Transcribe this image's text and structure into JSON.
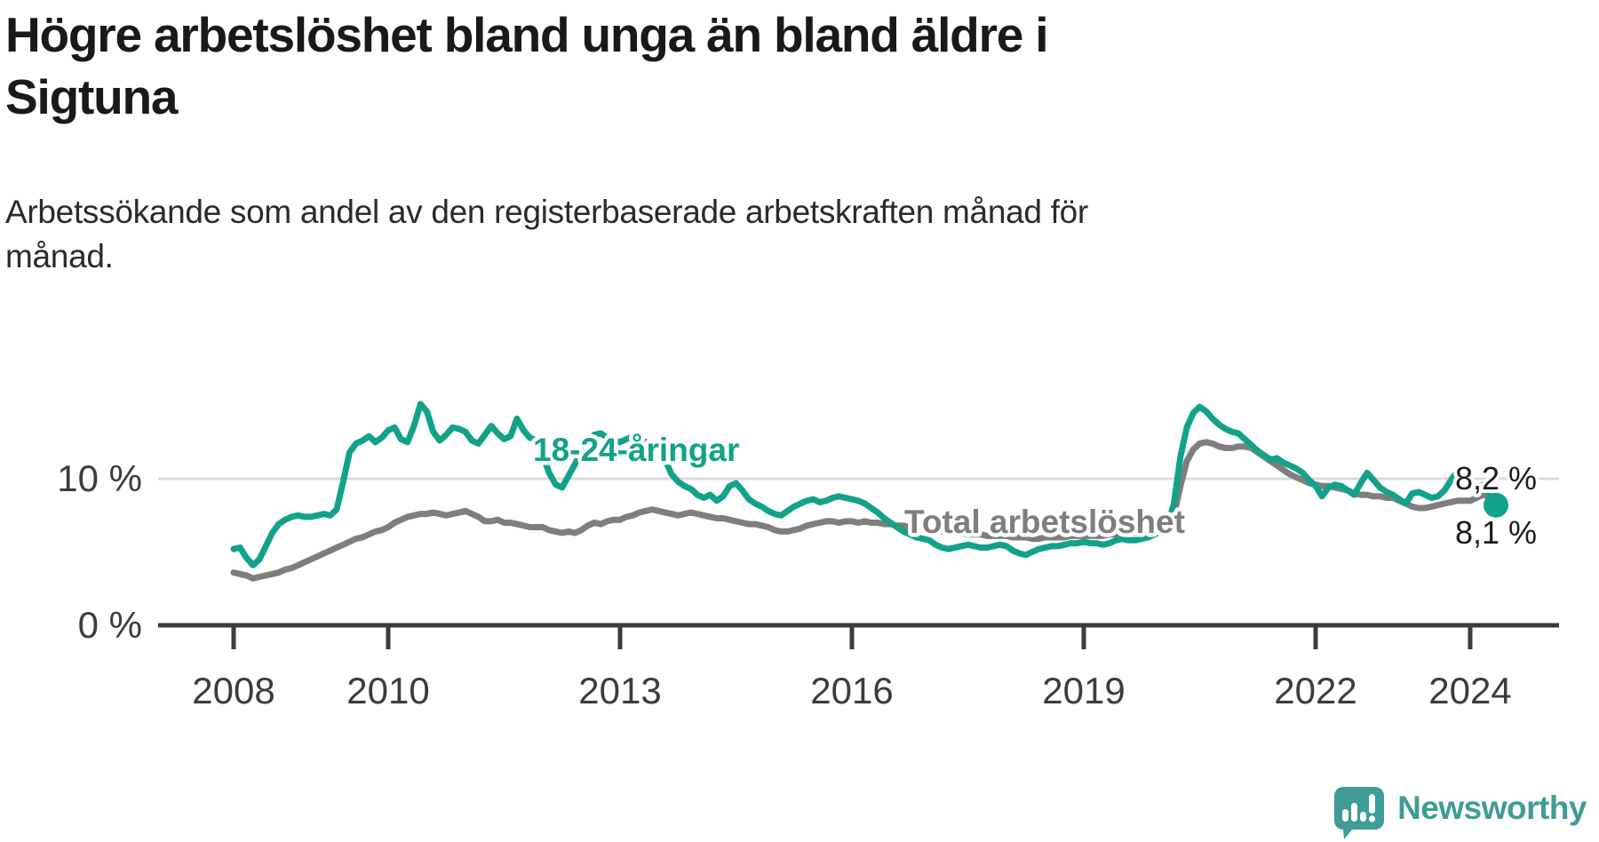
{
  "title": {
    "line1": "Högre arbetslöshet bland unga än bland äldre i",
    "line2": "Sigtuna"
  },
  "subtitle": {
    "line1": "Arbetssökande som andel av den registerbaserade arbetskraften månad för",
    "line2": "månad."
  },
  "branding": {
    "name": "Newsworthy",
    "color": "#3F9C96",
    "icon": "speech-bubble-bar-chart"
  },
  "chart_data": {
    "type": "line",
    "title": "Högre arbetslöshet bland unga än bland äldre i Sigtuna",
    "subtitle": "Arbetssökande som andel av den registerbaserade arbetskraften månad för månad.",
    "x_unit": "month",
    "x_start_year": 2008,
    "x_ticks": [
      2008,
      2010,
      2013,
      2016,
      2019,
      2022,
      2024
    ],
    "ylim": [
      0,
      15.5
    ],
    "grid": "single-line-at-10",
    "legend_position": "inline-labels",
    "y_ticks": [
      {
        "v": 10,
        "label": "10 %"
      },
      {
        "v": 0,
        "label": "0 %"
      }
    ],
    "series": [
      {
        "name": "18-24-åringar",
        "color": "#12A28A",
        "end_label": "8,2 %",
        "end_value": 8.2,
        "end_dot": true,
        "values": [
          5.2,
          5.3,
          4.6,
          4.1,
          4.5,
          5.4,
          6.3,
          6.9,
          7.2,
          7.4,
          7.5,
          7.4,
          7.4,
          7.5,
          7.6,
          7.5,
          7.9,
          9.8,
          11.8,
          12.4,
          12.6,
          12.9,
          12.5,
          12.8,
          13.3,
          13.5,
          12.7,
          12.5,
          13.6,
          15.1,
          14.6,
          13.2,
          12.6,
          13.0,
          13.5,
          13.4,
          13.2,
          12.6,
          12.4,
          13.0,
          13.6,
          13.1,
          12.7,
          12.9,
          14.1,
          13.3,
          12.8,
          12.6,
          11.6,
          10.4,
          9.6,
          9.4,
          10.2,
          11.0,
          11.9,
          12.6,
          13.0,
          13.1,
          12.8,
          12.6,
          12.5,
          12.7,
          12.9,
          12.7,
          12.5,
          12.4,
          12.3,
          11.3,
          10.3,
          9.8,
          9.5,
          9.3,
          8.9,
          8.7,
          8.9,
          8.5,
          8.8,
          9.5,
          9.7,
          9.2,
          8.6,
          8.3,
          8.1,
          7.8,
          7.6,
          7.5,
          7.8,
          8.1,
          8.3,
          8.5,
          8.6,
          8.4,
          8.5,
          8.7,
          8.8,
          8.7,
          8.6,
          8.5,
          8.3,
          8.0,
          7.7,
          7.3,
          7.0,
          6.7,
          6.4,
          6.2,
          6.0,
          5.9,
          5.8,
          5.5,
          5.3,
          5.2,
          5.3,
          5.4,
          5.5,
          5.4,
          5.3,
          5.3,
          5.4,
          5.5,
          5.4,
          5.1,
          4.9,
          4.8,
          5.0,
          5.2,
          5.3,
          5.4,
          5.4,
          5.5,
          5.6,
          5.6,
          5.7,
          5.6,
          5.6,
          5.5,
          5.6,
          5.8,
          5.9,
          5.8,
          5.8,
          5.9,
          6.0,
          6.2,
          6.5,
          6.8,
          8.3,
          11.5,
          13.5,
          14.5,
          14.9,
          14.6,
          14.1,
          13.7,
          13.4,
          13.2,
          13.1,
          12.7,
          12.3,
          11.9,
          11.6,
          11.3,
          11.4,
          11.1,
          10.9,
          10.7,
          10.4,
          9.9,
          9.5,
          8.8,
          9.4,
          9.6,
          9.5,
          9.2,
          8.9,
          9.7,
          10.4,
          9.9,
          9.4,
          9.1,
          8.9,
          8.6,
          8.3,
          9.0,
          9.1,
          8.9,
          8.7,
          8.8,
          9.2,
          9.9,
          10.5,
          10.1,
          9.8,
          9.3,
          9.6,
          8.8,
          8.2
        ]
      },
      {
        "name": "Total arbetslöshet",
        "color": "#7E7E7E",
        "end_label": "8,1 %",
        "end_value": 8.1,
        "end_dot": false,
        "values": [
          3.6,
          3.5,
          3.4,
          3.2,
          3.3,
          3.4,
          3.5,
          3.6,
          3.8,
          3.9,
          4.1,
          4.3,
          4.5,
          4.7,
          4.9,
          5.1,
          5.3,
          5.5,
          5.7,
          5.9,
          6.0,
          6.2,
          6.4,
          6.5,
          6.7,
          7.0,
          7.2,
          7.4,
          7.5,
          7.6,
          7.6,
          7.7,
          7.6,
          7.5,
          7.6,
          7.7,
          7.8,
          7.6,
          7.4,
          7.1,
          7.1,
          7.2,
          7.0,
          7.0,
          6.9,
          6.8,
          6.7,
          6.7,
          6.7,
          6.5,
          6.4,
          6.3,
          6.4,
          6.3,
          6.5,
          6.8,
          7.0,
          6.9,
          7.1,
          7.2,
          7.2,
          7.4,
          7.5,
          7.7,
          7.8,
          7.9,
          7.8,
          7.7,
          7.6,
          7.5,
          7.6,
          7.7,
          7.6,
          7.5,
          7.4,
          7.3,
          7.3,
          7.2,
          7.1,
          7.0,
          6.9,
          6.9,
          6.8,
          6.7,
          6.5,
          6.4,
          6.4,
          6.5,
          6.6,
          6.8,
          6.9,
          7.0,
          7.1,
          7.1,
          7.0,
          7.1,
          7.1,
          7.0,
          7.1,
          7.0,
          7.0,
          6.9,
          6.9,
          6.8,
          6.8,
          6.7,
          6.7,
          6.6,
          6.5,
          6.5,
          6.4,
          6.4,
          6.3,
          6.3,
          6.2,
          6.2,
          6.2,
          6.1,
          6.1,
          6.1,
          6.1,
          6.0,
          6.0,
          6.0,
          5.9,
          5.9,
          6.0,
          6.0,
          6.0,
          6.0,
          6.1,
          6.1,
          6.1,
          6.1,
          6.1,
          6.1,
          6.2,
          6.2,
          6.3,
          6.3,
          6.3,
          6.4,
          6.4,
          6.5,
          6.6,
          6.8,
          7.5,
          9.5,
          11.2,
          12.0,
          12.4,
          12.5,
          12.4,
          12.2,
          12.1,
          12.1,
          12.2,
          12.2,
          12.1,
          11.8,
          11.5,
          11.2,
          10.9,
          10.6,
          10.3,
          10.1,
          9.9,
          9.7,
          9.6,
          9.5,
          9.5,
          9.4,
          9.3,
          9.2,
          9.0,
          8.9,
          8.9,
          8.8,
          8.8,
          8.7,
          8.7,
          8.5,
          8.3,
          8.1,
          8.0,
          8.0,
          8.1,
          8.2,
          8.3,
          8.4,
          8.5,
          8.5,
          8.5,
          8.7,
          8.9,
          8.8,
          8.1
        ]
      }
    ]
  }
}
